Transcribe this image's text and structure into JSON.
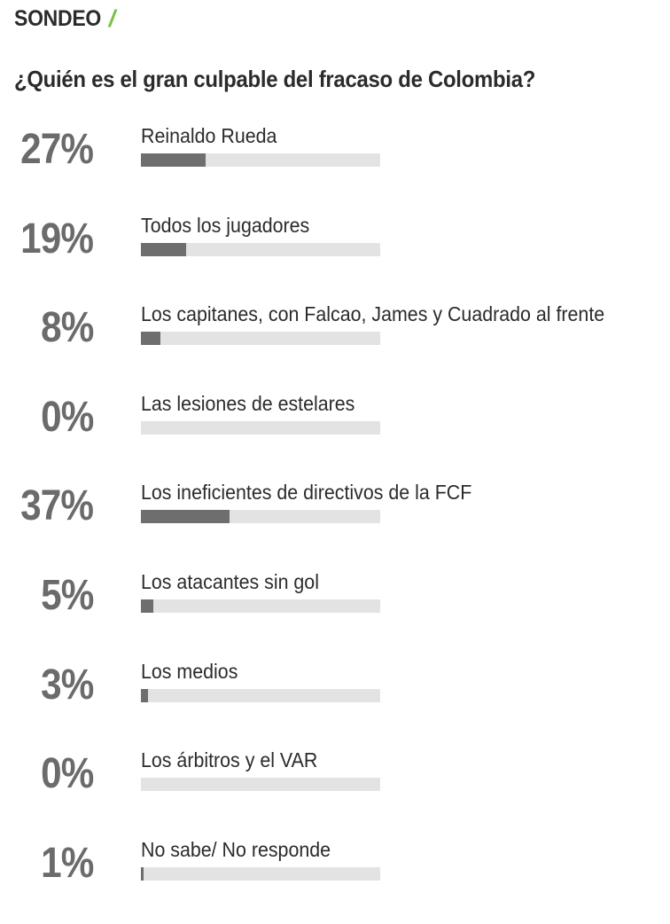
{
  "header": {
    "label": "SONDEO",
    "slash": "/"
  },
  "poll": {
    "question": "¿Quién es el gran culpable del fracaso de Colombia?",
    "options": [
      {
        "label": "Reinaldo Rueda",
        "percent_text": "27%",
        "percent": 27
      },
      {
        "label": "Todos los jugadores",
        "percent_text": "19%",
        "percent": 19
      },
      {
        "label": "Los capitanes, con Falcao, James y Cuadrado al frente",
        "percent_text": "8%",
        "percent": 8
      },
      {
        "label": "Las lesiones de estelares",
        "percent_text": "0%",
        "percent": 0
      },
      {
        "label": "Los ineficientes de directivos de la FCF",
        "percent_text": "37%",
        "percent": 37
      },
      {
        "label": "Los atacantes sin gol",
        "percent_text": "5%",
        "percent": 5
      },
      {
        "label": "Los medios",
        "percent_text": "3%",
        "percent": 3
      },
      {
        "label": "Los árbitros y el VAR",
        "percent_text": "0%",
        "percent": 0
      },
      {
        "label": "No sabe/ No responde",
        "percent_text": "1%",
        "percent": 1
      }
    ]
  },
  "colors": {
    "accent": "#7ac142",
    "bar_fill": "#6e6e6e",
    "bar_track": "#e3e3e3",
    "percent_text": "#6b6b6b"
  }
}
